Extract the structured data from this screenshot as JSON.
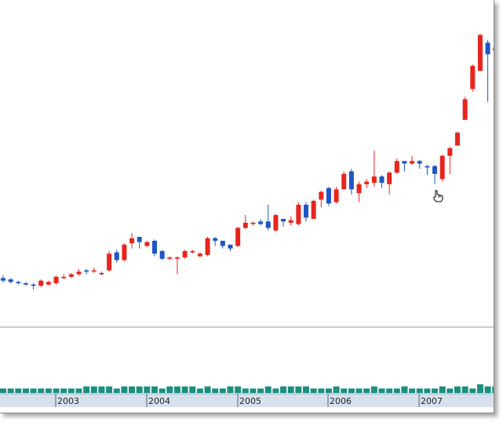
{
  "chart_data": {
    "type": "candlestick",
    "title": "",
    "xlabel": "",
    "ylabel": "",
    "x_tick_labels": [
      "2003",
      "2004",
      "2005",
      "2006",
      "2007"
    ],
    "x_ticks": [
      {
        "label": "2003",
        "index": 6
      },
      {
        "label": "2004",
        "index": 18
      },
      {
        "label": "2005",
        "index": 30
      },
      {
        "label": "2006",
        "index": 42
      },
      {
        "label": "2007",
        "index": 54
      }
    ],
    "y_range": [
      0,
      100
    ],
    "volume_range": [
      0,
      10
    ],
    "grid": false,
    "legend": "none",
    "colors": {
      "up": "#e8251d",
      "down": "#1f55c4",
      "volume": "#1a8f7f",
      "axis_band": "#d7e1ee",
      "separator": "#9a9a9a"
    },
    "series": [
      {
        "name": "",
        "ohlc": [
          [
            3.5,
            2.5,
            4.5,
            1.8
          ],
          [
            3.0,
            2.0,
            3.5,
            1.5
          ],
          [
            2.0,
            1.5,
            2.5,
            1.0
          ],
          [
            1.5,
            1.0,
            2.0,
            0.5
          ],
          [
            1.0,
            0.5,
            1.5,
            -1.0
          ],
          [
            0.5,
            2.5,
            3.0,
            0.0
          ],
          [
            1.0,
            2.0,
            2.5,
            0.5
          ],
          [
            1.5,
            4.0,
            4.5,
            1.0
          ],
          [
            3.5,
            4.0,
            5.0,
            3.0
          ],
          [
            4.0,
            5.0,
            5.5,
            3.5
          ],
          [
            5.0,
            6.0,
            7.0,
            4.5
          ],
          [
            6.5,
            6.0,
            7.0,
            5.0
          ],
          [
            6.0,
            6.5,
            7.5,
            5.5
          ],
          [
            5.0,
            5.5,
            6.0,
            4.5
          ],
          [
            6.5,
            13.0,
            14.0,
            6.0
          ],
          [
            13.5,
            10.5,
            14.5,
            9.5
          ],
          [
            10.5,
            16.5,
            17.0,
            10.0
          ],
          [
            17.0,
            19.0,
            21.0,
            15.0
          ],
          [
            19.5,
            17.5,
            19.5,
            15.0
          ],
          [
            16.0,
            17.5,
            18.0,
            15.5
          ],
          [
            18.0,
            13.0,
            18.5,
            12.0
          ],
          [
            14.0,
            11.0,
            14.5,
            10.5
          ],
          [
            11.0,
            11.5,
            12.0,
            10.5
          ],
          [
            11.0,
            11.5,
            12.0,
            5.0
          ],
          [
            11.5,
            14.0,
            14.5,
            11.0
          ],
          [
            13.5,
            14.0,
            14.5,
            13.0
          ],
          [
            12.0,
            13.0,
            13.5,
            11.5
          ],
          [
            12.5,
            19.0,
            19.5,
            12.0
          ],
          [
            19.0,
            18.0,
            19.5,
            16.0
          ],
          [
            18.0,
            16.0,
            18.0,
            15.0
          ],
          [
            16.5,
            15.0,
            16.5,
            14.0
          ],
          [
            16.0,
            23.0,
            23.5,
            15.5
          ],
          [
            23.0,
            25.0,
            28.0,
            22.5
          ],
          [
            24.5,
            25.0,
            25.5,
            24.0
          ],
          [
            25.5,
            24.5,
            26.5,
            24.0
          ],
          [
            25.5,
            23.0,
            32.0,
            22.0
          ],
          [
            22.0,
            28.0,
            28.5,
            21.5
          ],
          [
            26.5,
            25.5,
            26.5,
            23.5
          ],
          [
            25.0,
            26.0,
            27.5,
            24.0
          ],
          [
            24.5,
            32.0,
            33.0,
            24.0
          ],
          [
            32.0,
            27.0,
            33.0,
            25.5
          ],
          [
            26.5,
            33.5,
            34.0,
            26.5
          ],
          [
            34.0,
            37.0,
            37.5,
            31.0
          ],
          [
            38.5,
            32.5,
            39.0,
            31.5
          ],
          [
            33.0,
            38.0,
            39.0,
            32.5
          ],
          [
            38.0,
            44.0,
            45.0,
            38.0
          ],
          [
            45.0,
            38.0,
            46.0,
            36.0
          ],
          [
            36.5,
            40.0,
            41.0,
            33.0
          ],
          [
            40.0,
            41.0,
            42.0,
            38.5
          ],
          [
            40.5,
            43.0,
            53.0,
            39.0
          ],
          [
            43.0,
            40.5,
            43.5,
            38.5
          ],
          [
            40.0,
            44.5,
            45.0,
            36.0
          ],
          [
            44.5,
            49.0,
            50.0,
            44.0
          ],
          [
            49.0,
            48.0,
            49.0,
            45.0
          ],
          [
            48.0,
            49.0,
            51.0,
            47.5
          ],
          [
            49.0,
            48.0,
            49.5,
            46.0
          ],
          [
            47.0,
            46.5,
            47.5,
            43.5
          ],
          [
            47.0,
            44.0,
            47.5,
            40.0
          ],
          [
            42.0,
            51.0,
            51.5,
            41.0
          ],
          [
            51.0,
            54.0,
            54.5,
            44.0
          ],
          [
            55.0,
            60.0,
            60.5,
            55.0
          ],
          [
            65.0,
            73.0,
            74.0,
            65.0
          ],
          [
            77.0,
            86.0,
            86.5,
            76.0
          ],
          [
            84.0,
            98.0,
            98.5,
            84.0
          ],
          [
            95.0,
            90.5,
            96.0,
            72.0
          ],
          [
            92.0,
            93.0,
            96.0,
            84.0
          ]
        ]
      }
    ],
    "volume": [
      1,
      1,
      1,
      1,
      1,
      1,
      1,
      1,
      1,
      1,
      1,
      2,
      2,
      2,
      2,
      1,
      2,
      2,
      2,
      2,
      2,
      1,
      2,
      2,
      2,
      2,
      1,
      2,
      1,
      1,
      2,
      2,
      1,
      1,
      1,
      2,
      1,
      2,
      2,
      2,
      2,
      1,
      1,
      1,
      2,
      1,
      1,
      1,
      1,
      2,
      1,
      1,
      1,
      2,
      1,
      1,
      1,
      1,
      2,
      1,
      2,
      2,
      1,
      3,
      2,
      2
    ]
  }
}
